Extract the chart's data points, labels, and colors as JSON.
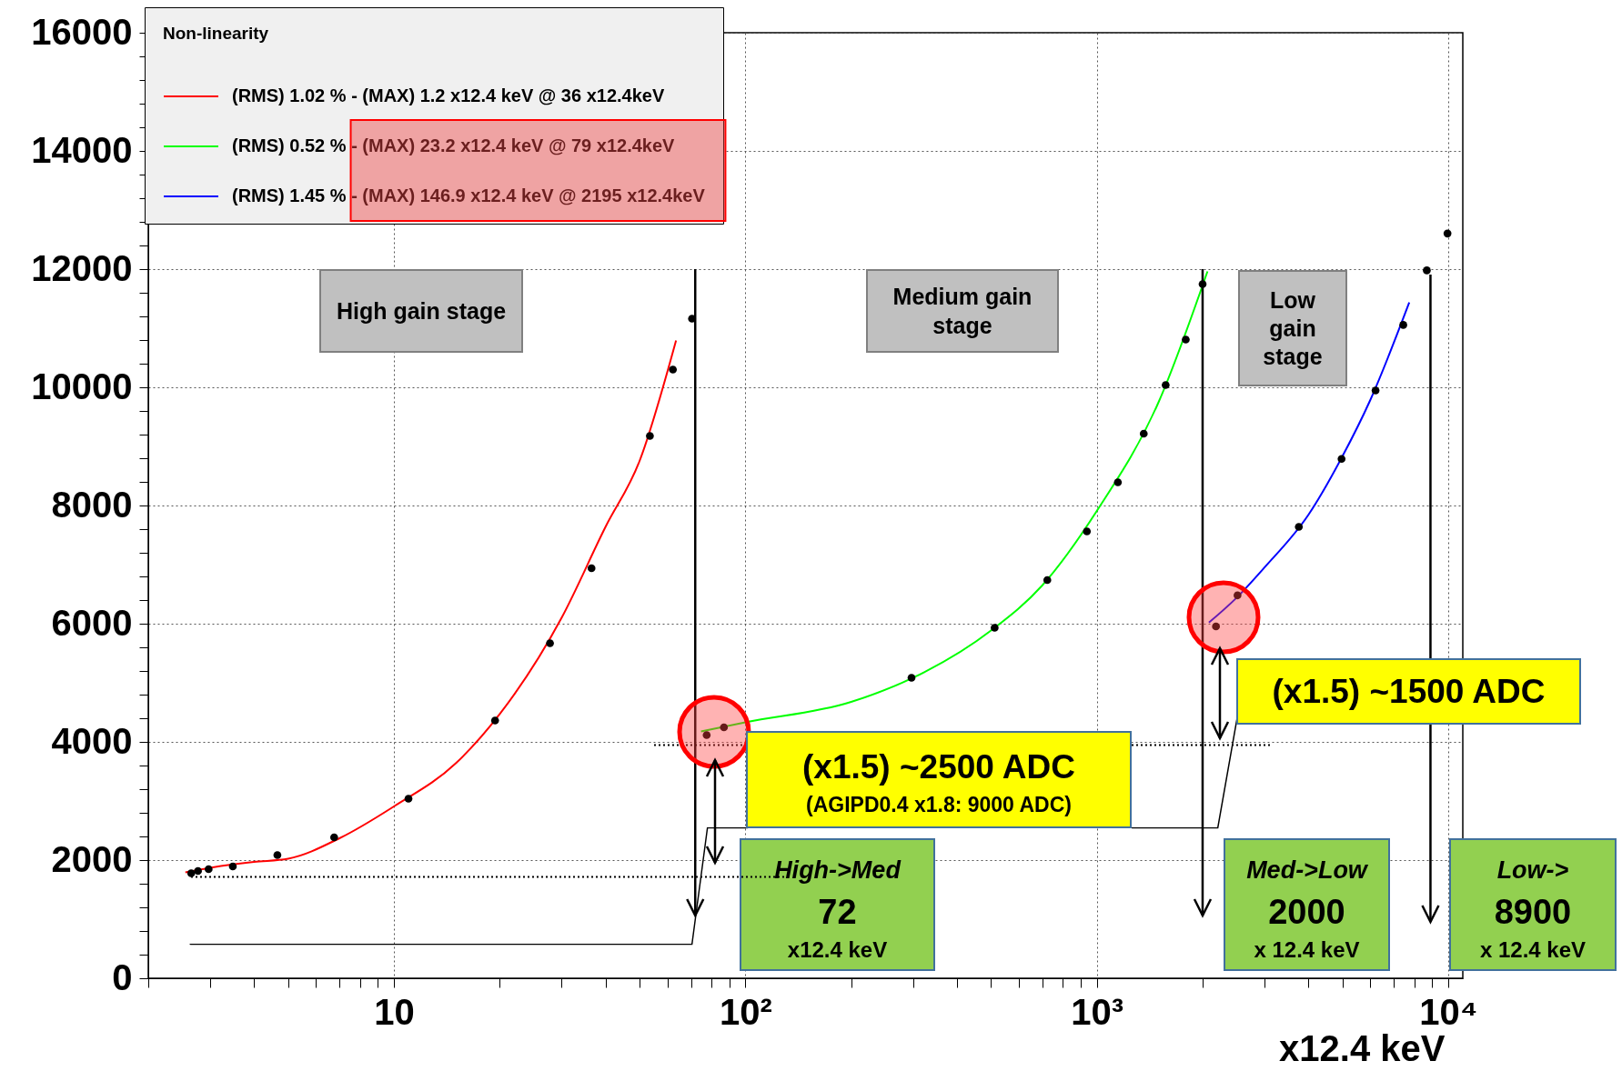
{
  "chart_data": {
    "type": "line",
    "xlabel": "x12.4 keV",
    "legend_title": "Non-linearity",
    "legend": "top left",
    "grid": true,
    "log": "x",
    "xlim": [
      2,
      11000
    ],
    "xticks": [
      {
        "value": 2,
        "label": null
      },
      {
        "value": 3,
        "label": null
      },
      {
        "value": 4,
        "label": null
      },
      {
        "value": 5,
        "label": null
      },
      {
        "value": 6,
        "label": null
      },
      {
        "value": 7,
        "label": null
      },
      {
        "value": 8,
        "label": null
      },
      {
        "value": 9,
        "label": null
      },
      10,
      {
        "value": 20,
        "label": null
      },
      {
        "value": 30,
        "label": null
      },
      {
        "value": 40,
        "label": null
      },
      {
        "value": 50,
        "label": null
      },
      {
        "value": 60,
        "label": null
      },
      {
        "value": 70,
        "label": null
      },
      {
        "value": 80,
        "label": null
      },
      {
        "value": 90,
        "label": null
      },
      {
        "value": 100,
        "label": "10²"
      },
      {
        "value": 200,
        "label": null
      },
      {
        "value": 300,
        "label": null
      },
      {
        "value": 400,
        "label": null
      },
      {
        "value": 500,
        "label": null
      },
      {
        "value": 600,
        "label": null
      },
      {
        "value": 700,
        "label": null
      },
      {
        "value": 800,
        "label": null
      },
      {
        "value": 900,
        "label": null
      },
      {
        "value": 1000,
        "label": "10³"
      },
      {
        "value": 2000,
        "label": null
      },
      {
        "value": 3000,
        "label": null
      },
      {
        "value": 4000,
        "label": null
      },
      {
        "value": 5000,
        "label": null
      },
      {
        "value": 6000,
        "label": null
      },
      {
        "value": 7000,
        "label": null
      },
      {
        "value": 8000,
        "label": null
      },
      {
        "value": 9000,
        "label": null
      },
      {
        "value": 10000,
        "label": "10⁴"
      }
    ],
    "ylim": [
      0,
      16000
    ],
    "yticks": [
      0,
      {
        "value": 400,
        "label": null
      },
      {
        "value": 800,
        "label": null
      },
      {
        "value": 1200,
        "label": null
      },
      {
        "value": 1600,
        "label": null
      },
      2000,
      {
        "value": 2400,
        "label": null
      },
      {
        "value": 2800,
        "label": null
      },
      {
        "value": 3200,
        "label": null
      },
      {
        "value": 3600,
        "label": null
      },
      4000,
      {
        "value": 4400,
        "label": null
      },
      {
        "value": 4800,
        "label": null
      },
      {
        "value": 5200,
        "label": null
      },
      {
        "value": 5600,
        "label": null
      },
      6000,
      {
        "value": 6400,
        "label": null
      },
      {
        "value": 6800,
        "label": null
      },
      {
        "value": 7200,
        "label": null
      },
      {
        "value": 7600,
        "label": null
      },
      8000,
      {
        "value": 8400,
        "label": null
      },
      {
        "value": 8800,
        "label": null
      },
      {
        "value": 9200,
        "label": null
      },
      {
        "value": 9600,
        "label": null
      },
      10000,
      {
        "value": 10400,
        "label": null
      },
      {
        "value": 10800,
        "label": null
      },
      {
        "value": 11200,
        "label": null
      },
      {
        "value": 11600,
        "label": null
      },
      12000,
      {
        "value": 12400,
        "label": null
      },
      {
        "value": 12800,
        "label": null
      },
      {
        "value": 13200,
        "label": null
      },
      {
        "value": 13600,
        "label": null
      },
      14000,
      {
        "value": 14400,
        "label": null
      },
      {
        "value": 14800,
        "label": null
      },
      {
        "value": 15200,
        "label": null
      },
      {
        "value": 15600,
        "label": null
      },
      16000
    ],
    "series": [
      {
        "type": "line",
        "name": "(RMS) 1.02 % - (MAX) 1.2 x12.4 keV @ 36 x12.4keV",
        "color": "#ff0000",
        "x": [
          2.55,
          3,
          4,
          5,
          7,
          10,
          15,
          20,
          30,
          40,
          50,
          63.5
        ],
        "values": [
          1792,
          1869,
          1969,
          2023,
          2369,
          2908,
          3638,
          4470,
          6100,
          7638,
          8754,
          10792
        ]
      },
      {
        "type": "line",
        "name": "(RMS) 0.52 % - (MAX) 23.2 x12.4 keV @ 79 x12.4keV",
        "color": "#00ff00",
        "x": [
          74.8,
          100,
          200,
          300,
          500,
          700,
          1000,
          1500,
          2065
        ],
        "values": [
          4177,
          4331,
          4677,
          5085,
          5885,
          6650,
          7908,
          9754,
          11962
        ]
      },
      {
        "type": "line",
        "name": "(RMS) 1.45 % - (MAX) 146.9 x12.4 keV @ 2195 x12.4keV",
        "color": "#0000ff",
        "x": [
          2084,
          2500,
          3000,
          4000,
          5000,
          6000,
          7745
        ],
        "values": [
          6018,
          6440,
          6951,
          7842,
          8834,
          9785,
          11435
        ]
      },
      {
        "type": "scatter",
        "color": "#000000",
        "marker": "circle",
        "x": [
          2.65,
          2.77,
          2.97,
          3.48,
          4.66,
          6.76,
          11.0,
          19.4,
          27.8,
          36.5,
          53.5,
          62.2,
          70.5,
          77.6,
          86.9,
          297,
          512,
          723,
          937,
          1148,
          1360,
          1570,
          1791,
          2000,
          2183,
          2514,
          3757,
          4971,
          6211,
          7447,
          8690,
          9950
        ],
        "values": [
          1777,
          1815,
          1846,
          1892,
          2085,
          2385,
          3038,
          4362,
          5669,
          6938,
          9177,
          10300,
          11162,
          4115,
          4246,
          5085,
          5931,
          6738,
          7562,
          8392,
          9215,
          10038,
          10808,
          11746,
          5954,
          6480,
          7638,
          8788,
          9946,
          11055,
          11978,
          12602
        ]
      }
    ],
    "ref_lines": [
      {
        "axis": "x",
        "value": 72,
        "label": "High->Med\n72\nx12.4 keV",
        "color": "#000000"
      },
      {
        "axis": "x",
        "value": 2000,
        "label": "Med->Low\n2000\nx 12.4 keV",
        "color": "#000000"
      },
      {
        "axis": "x",
        "value": 8900,
        "label": "Low->\n8900\nx 12.4 keV",
        "color": "#000000"
      },
      {
        "axis": "y",
        "value": 1715,
        "color": "#000000",
        "line_style": "dotted"
      },
      {
        "axis": "y",
        "value": 3946,
        "color": "#000000",
        "line_style": "dotted"
      }
    ],
    "annotations": [
      "High gain stage",
      "Medium gain stage",
      "Low gain stage",
      "(x1.5) ~2500 ADC",
      "(AGIPD0.4 x1.8: 9000 ADC)",
      "(x1.5) ~1500 ADC"
    ]
  }
}
